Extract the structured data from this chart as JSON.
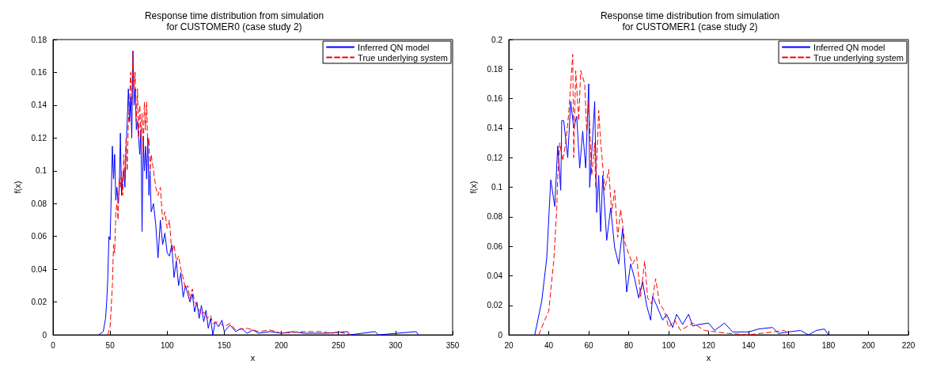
{
  "chart_data": [
    {
      "type": "line",
      "title": "Response time distribution from simulation\nfor CUSTOMER0 (case study 2)",
      "xlabel": "x",
      "ylabel": "f(x)",
      "xlim": [
        0,
        350
      ],
      "xticks": [
        0,
        50,
        100,
        150,
        200,
        250,
        300,
        350
      ],
      "ylim": [
        0,
        0.18
      ],
      "yticks": [
        0,
        0.02,
        0.04,
        0.06,
        0.08,
        0.1,
        0.12,
        0.14,
        0.16,
        0.18
      ],
      "grid": false,
      "legend": "top right",
      "marker": "none",
      "series": [
        {
          "name": "Inferred QN model",
          "color": "#0000ff",
          "line_style": "solid",
          "x": [
            40,
            44,
            46,
            47,
            48,
            49,
            50,
            51,
            52,
            53,
            54,
            55,
            56,
            57,
            58,
            59,
            60,
            61,
            62,
            63,
            64,
            65,
            66,
            67,
            68,
            69,
            70,
            71,
            72,
            73,
            74,
            75,
            76,
            77,
            78,
            79,
            80,
            81,
            82,
            83,
            84,
            85,
            86,
            88,
            90,
            92,
            94,
            96,
            98,
            100,
            102,
            104,
            106,
            108,
            110,
            112,
            114,
            116,
            118,
            120,
            122,
            124,
            126,
            128,
            130,
            132,
            134,
            136,
            138,
            140,
            142,
            145,
            148,
            150,
            155,
            160,
            165,
            170,
            175,
            180,
            190,
            200,
            210,
            220,
            240,
            258,
            260,
            282,
            285,
            318,
            320
          ],
          "values": [
            0,
            0.002,
            0.01,
            0.02,
            0.035,
            0.06,
            0.058,
            0.085,
            0.115,
            0.095,
            0.11,
            0.082,
            0.09,
            0.08,
            0.088,
            0.123,
            0.085,
            0.095,
            0.1,
            0.09,
            0.115,
            0.13,
            0.15,
            0.13,
            0.145,
            0.12,
            0.173,
            0.14,
            0.15,
            0.125,
            0.13,
            0.12,
            0.11,
            0.125,
            0.063,
            0.12,
            0.1,
            0.115,
            0.095,
            0.12,
            0.085,
            0.1,
            0.075,
            0.08,
            0.067,
            0.047,
            0.07,
            0.055,
            0.062,
            0.05,
            0.048,
            0.055,
            0.035,
            0.045,
            0.03,
            0.038,
            0.023,
            0.03,
            0.025,
            0.02,
            0.025,
            0.014,
            0.02,
            0.01,
            0.018,
            0.008,
            0.015,
            0.004,
            0.01,
            0,
            0.008,
            0.005,
            0.009,
            0.002,
            0.006,
            0.002,
            0.004,
            0.001,
            0.003,
            0.001,
            0.002,
            0.001,
            0.002,
            0.001,
            0.001,
            0.002,
            0,
            0.002,
            0,
            0.002,
            0
          ]
        },
        {
          "name": "True underlying system",
          "color": "#ff0000",
          "line_style": "dashed",
          "x": [
            48,
            50,
            52,
            53,
            54,
            55,
            56,
            57,
            58,
            59,
            60,
            61,
            62,
            63,
            64,
            65,
            66,
            67,
            68,
            69,
            70,
            71,
            72,
            73,
            74,
            75,
            76,
            77,
            78,
            79,
            80,
            81,
            82,
            83,
            84,
            85,
            86,
            88,
            90,
            92,
            94,
            96,
            98,
            100,
            102,
            104,
            106,
            108,
            110,
            112,
            114,
            116,
            118,
            120,
            122,
            124,
            126,
            128,
            130,
            132,
            135,
            138,
            140,
            145,
            150,
            155,
            160,
            170,
            180,
            190,
            200,
            220,
            235,
            245,
            250,
            260
          ],
          "values": [
            0,
            0.005,
            0.03,
            0.055,
            0.05,
            0.075,
            0.08,
            0.07,
            0.095,
            0.09,
            0.1,
            0.085,
            0.11,
            0.095,
            0.12,
            0.1,
            0.13,
            0.14,
            0.16,
            0.14,
            0.173,
            0.15,
            0.16,
            0.13,
            0.15,
            0.12,
            0.14,
            0.12,
            0.135,
            0.11,
            0.142,
            0.125,
            0.142,
            0.115,
            0.12,
            0.1,
            0.11,
            0.1,
            0.09,
            0.085,
            0.09,
            0.07,
            0.075,
            0.065,
            0.07,
            0.05,
            0.055,
            0.045,
            0.048,
            0.04,
            0.035,
            0.028,
            0.03,
            0.022,
            0.028,
            0.02,
            0.018,
            0.015,
            0.012,
            0.014,
            0.01,
            0.012,
            0.007,
            0.008,
            0.005,
            0.007,
            0.003,
            0.004,
            0.002,
            0.003,
            0.001,
            0.002,
            0.002,
            0.001,
            0.002,
            0
          ]
        }
      ]
    },
    {
      "type": "line",
      "title": "Response time distribution from simulation\nfor CUSTOMER1 (case study 2)",
      "xlabel": "x",
      "ylabel": "f(x)",
      "xlim": [
        20,
        220
      ],
      "xticks": [
        20,
        40,
        60,
        80,
        100,
        120,
        140,
        160,
        180,
        200,
        220
      ],
      "ylim": [
        0,
        0.2
      ],
      "yticks": [
        0,
        0.02,
        0.04,
        0.06,
        0.08,
        0.1,
        0.12,
        0.14,
        0.16,
        0.18,
        0.2
      ],
      "grid": false,
      "legend": "top right",
      "marker": "none",
      "series": [
        {
          "name": "Inferred QN model",
          "color": "#0000ff",
          "line_style": "solid",
          "x": [
            33,
            36.5,
            39,
            41,
            43,
            44.5,
            46,
            46.5,
            47.5,
            49.5,
            51,
            52.5,
            54,
            55.5,
            57,
            58.5,
            60,
            60.5,
            63,
            64,
            65,
            66,
            67,
            69,
            71,
            73,
            75,
            77,
            79,
            81,
            83,
            85,
            87,
            89,
            91,
            92,
            94,
            97,
            99,
            102,
            104,
            107,
            110,
            112,
            115,
            120,
            123,
            128,
            132,
            140,
            145,
            152,
            155,
            160,
            166,
            170,
            174,
            178,
            180
          ],
          "values": [
            0,
            0.023,
            0.052,
            0.105,
            0.087,
            0.128,
            0.098,
            0.145,
            0.145,
            0.12,
            0.158,
            0.14,
            0.148,
            0.113,
            0.138,
            0.113,
            0.17,
            0.1,
            0.158,
            0.083,
            0.108,
            0.07,
            0.108,
            0.064,
            0.086,
            0.059,
            0.048,
            0.072,
            0.029,
            0.048,
            0.038,
            0.025,
            0.036,
            0.02,
            0.01,
            0.026,
            0.02,
            0.01,
            0.014,
            0.005,
            0.014,
            0.007,
            0.014,
            0.006,
            0.007,
            0.008,
            0.003,
            0.008,
            0.002,
            0.002,
            0.004,
            0.005,
            0.001,
            0.002,
            0.003,
            0,
            0.003,
            0.004,
            0
          ]
        },
        {
          "name": "True underlying system",
          "color": "#ff0000",
          "line_style": "dashed",
          "x": [
            35,
            38,
            40,
            41,
            42.5,
            44,
            44.5,
            45.5,
            47,
            48.5,
            50,
            52,
            52.5,
            53.5,
            55,
            56,
            58,
            59,
            60,
            61.5,
            63,
            63.5,
            65,
            66,
            66.5,
            68,
            70,
            71.5,
            73,
            74.5,
            76,
            78,
            80,
            82,
            84,
            86,
            88,
            89.5,
            91.5,
            93.5,
            95.5,
            98,
            100,
            103,
            106,
            112,
            118,
            124,
            130,
            140,
            158,
            160
          ],
          "values": [
            0,
            0.01,
            0.016,
            0.03,
            0.05,
            0.085,
            0.107,
            0.13,
            0.118,
            0.13,
            0.15,
            0.19,
            0.12,
            0.179,
            0.145,
            0.179,
            0.17,
            0.138,
            0.158,
            0.108,
            0.13,
            0.1,
            0.152,
            0.13,
            0.123,
            0.098,
            0.112,
            0.083,
            0.098,
            0.066,
            0.085,
            0.063,
            0.055,
            0.048,
            0.053,
            0.026,
            0.05,
            0.025,
            0.021,
            0.038,
            0.021,
            0.016,
            0.005,
            0.01,
            0.003,
            0.008,
            0.003,
            0.002,
            0.001,
            0,
            0.003,
            0
          ]
        }
      ]
    }
  ]
}
